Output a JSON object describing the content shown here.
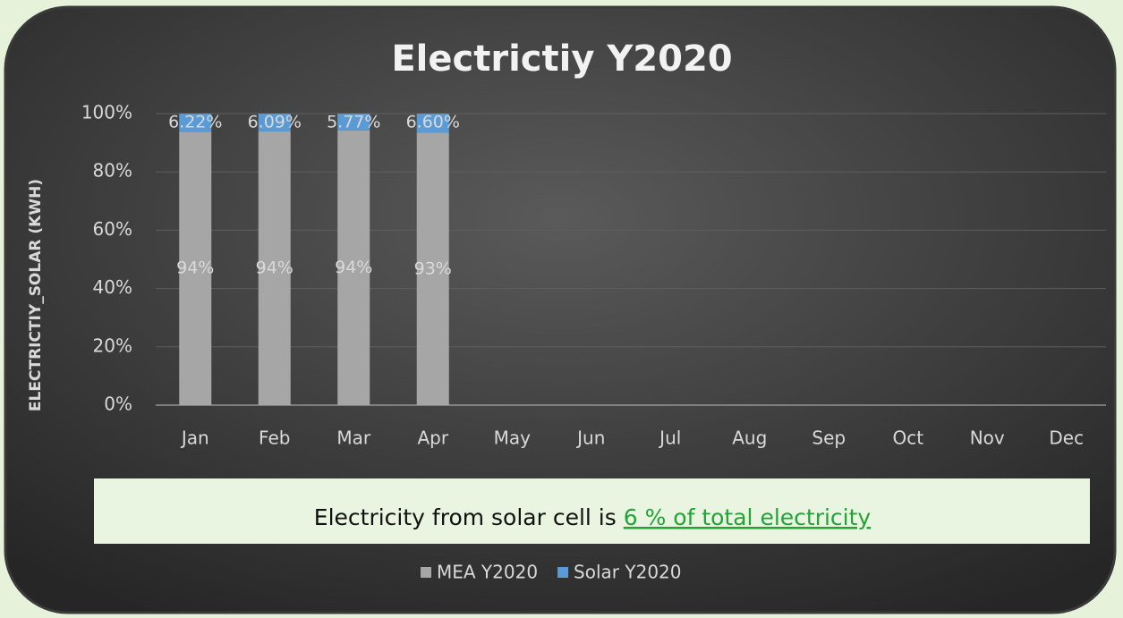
{
  "chart_data": {
    "type": "bar",
    "stacked": true,
    "title": "Electrictiy Y2020",
    "ylabel": "ELECTRICTIY_SOLAR (KWH)",
    "categories": [
      "Jan",
      "Feb",
      "Mar",
      "Apr",
      "May",
      "Jun",
      "Jul",
      "Aug",
      "Sep",
      "Oct",
      "Nov",
      "Dec"
    ],
    "series": [
      {
        "name": "MEA Y2020",
        "color": "#a6a6a6",
        "values": [
          93.78,
          93.91,
          94.23,
          93.4,
          null,
          null,
          null,
          null,
          null,
          null,
          null,
          null
        ],
        "value_labels": [
          "94%",
          "94%",
          "94%",
          "93%",
          null,
          null,
          null,
          null,
          null,
          null,
          null,
          null
        ]
      },
      {
        "name": "Solar Y2020",
        "color": "#5b9bd5",
        "values": [
          6.22,
          6.09,
          5.77,
          6.6,
          null,
          null,
          null,
          null,
          null,
          null,
          null,
          null
        ],
        "value_labels": [
          "6.22%",
          "6.09%",
          "5.77%",
          "6.60%",
          null,
          null,
          null,
          null,
          null,
          null,
          null,
          null
        ]
      }
    ],
    "ylim": [
      0,
      100
    ],
    "yticks": [
      {
        "value": 0,
        "label": "0%"
      },
      {
        "value": 20,
        "label": "20%"
      },
      {
        "value": 40,
        "label": "40%"
      },
      {
        "value": 60,
        "label": "60%"
      },
      {
        "value": 80,
        "label": "80%"
      },
      {
        "value": 100,
        "label": "100%"
      }
    ],
    "grid": true,
    "legend": "bottom",
    "annotation": {
      "text": "Electricity from solar cell is ",
      "highlight": "6 % of total electricity"
    }
  }
}
